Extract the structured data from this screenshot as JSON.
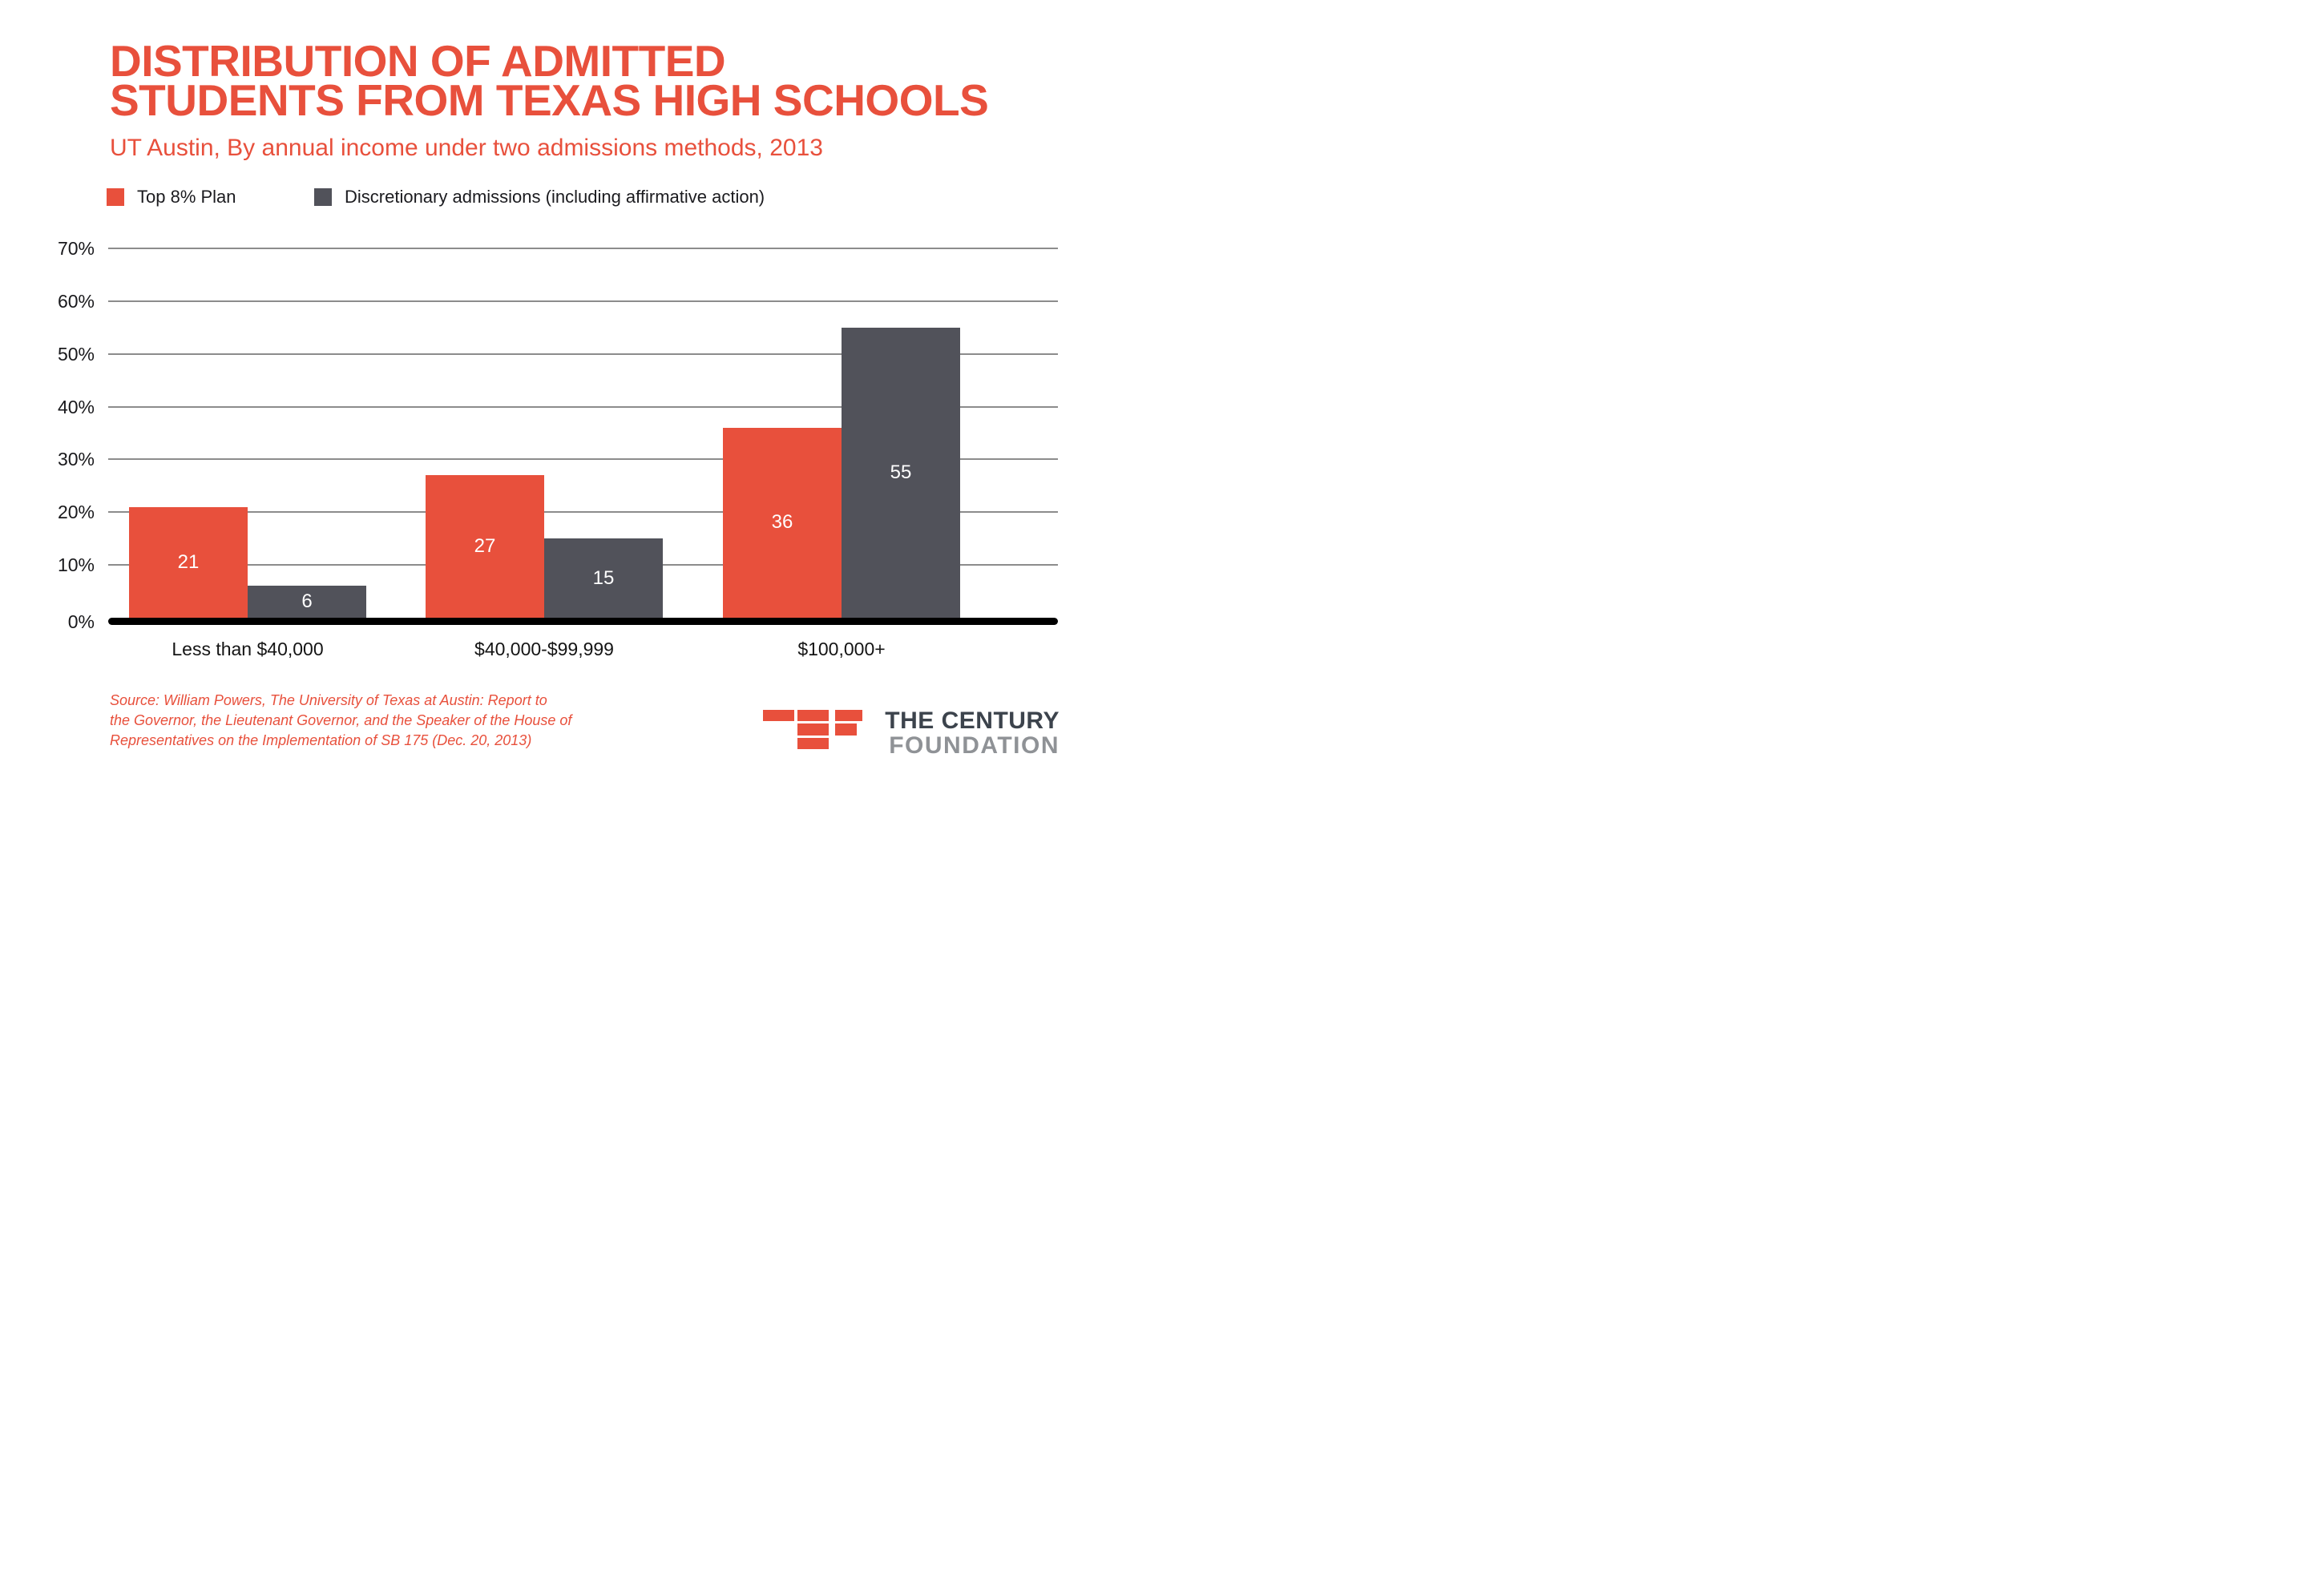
{
  "accent_red": "#E8503C",
  "bar_gray": "#51525A",
  "title": {
    "line1": "DISTRIBUTION OF ADMITTED",
    "line2": "STUDENTS FROM TEXAS HIGH SCHOOLS"
  },
  "subtitle": "UT Austin, By annual income under two admissions methods, 2013",
  "legend": [
    {
      "label": "Top 8% Plan",
      "color": "#E8503C"
    },
    {
      "label": "Discretionary admissions (including affirmative action)",
      "color": "#51525A"
    }
  ],
  "chart_data": {
    "type": "bar",
    "categories": [
      "Less than $40,000",
      "$40,000-$99,999",
      "$100,000+"
    ],
    "series": [
      {
        "name": "Top 8% Plan",
        "color": "#E8503C",
        "values": [
          21,
          27,
          36
        ]
      },
      {
        "name": "Discretionary admissions (including affirmative action)",
        "color": "#51525A",
        "values": [
          6,
          15,
          55
        ]
      }
    ],
    "title": "Distribution of admitted students from Texas high schools",
    "xlabel": "",
    "ylabel": "",
    "yticks": [
      "70%",
      "60%",
      "50%",
      "40%",
      "30%",
      "20%",
      "10%",
      "0%"
    ],
    "ylim": [
      0,
      70
    ],
    "grid": true,
    "legend_position": "top-left",
    "value_labels": "inside bars, white"
  },
  "source": {
    "line1": "Source: William Powers, The University of Texas at Austin: Report to",
    "line2": "the Governor, the Lieutenant Governor, and the Speaker of the House of",
    "line3": "Representatives on the Implementation of SB 175 (Dec. 20, 2013)"
  },
  "logo": {
    "line1": "THE CENTURY",
    "line2": "FOUNDATION"
  }
}
